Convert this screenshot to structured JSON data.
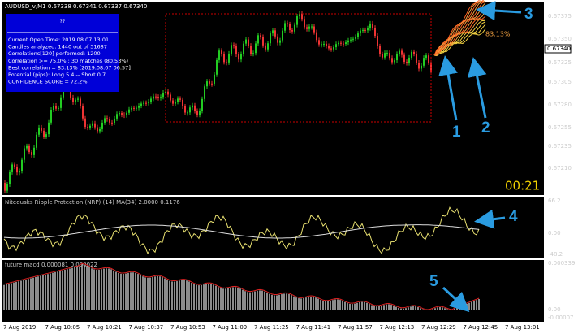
{
  "window": {
    "title": "AUDUSD_v,M1  0.67338 0.67341 0.67337 0.67340",
    "price_labels": [
      "0.67375",
      "0.67350",
      "0.67325",
      "0.67305",
      "0.67280",
      "0.67255",
      "0.67235",
      "0.67210"
    ],
    "current_price": "0.67340",
    "forecast_label": "83.13%",
    "timer": "00:21"
  },
  "info_panel": {
    "header": "??",
    "lines": [
      "Current Open Time: 2019.08.07 13:01",
      "Candles analyzed: 1440 out of 31687",
      "Correlations[120] performed: 1200",
      "Correlation >= 75.0% : 30 matches (80.53%)",
      "Best correlation = 83.13% [2019.08.07 06:57]",
      "Potential (pips): Long 5.4 -- Short 0.7",
      "CONFIDENCE SCORE = 72.2%"
    ]
  },
  "annotations": [
    "1",
    "2",
    "3",
    "4",
    "5"
  ],
  "indicators": [
    {
      "title": "Nitedusks Ripple Protection (NRP) (14) MA(34) 2.0000 0.1176",
      "labels": [
        "66.2",
        "0.00",
        "-48.2"
      ]
    },
    {
      "title": "future macd 0.000081 0.000022",
      "labels": [
        "0.000339",
        "0.00",
        "-0.00007"
      ]
    }
  ],
  "time_axis": [
    "7 Aug 2019",
    "7 Aug 10:05",
    "7 Aug 10:21",
    "7 Aug 10:37",
    "7 Aug 10:53",
    "7 Aug 11:09",
    "7 Aug 11:25",
    "7 Aug 11:41",
    "7 Aug 11:57",
    "7 Aug 12:13",
    "7 Aug 12:29",
    "7 Aug 12:45",
    "7 Aug 13:01"
  ]
}
